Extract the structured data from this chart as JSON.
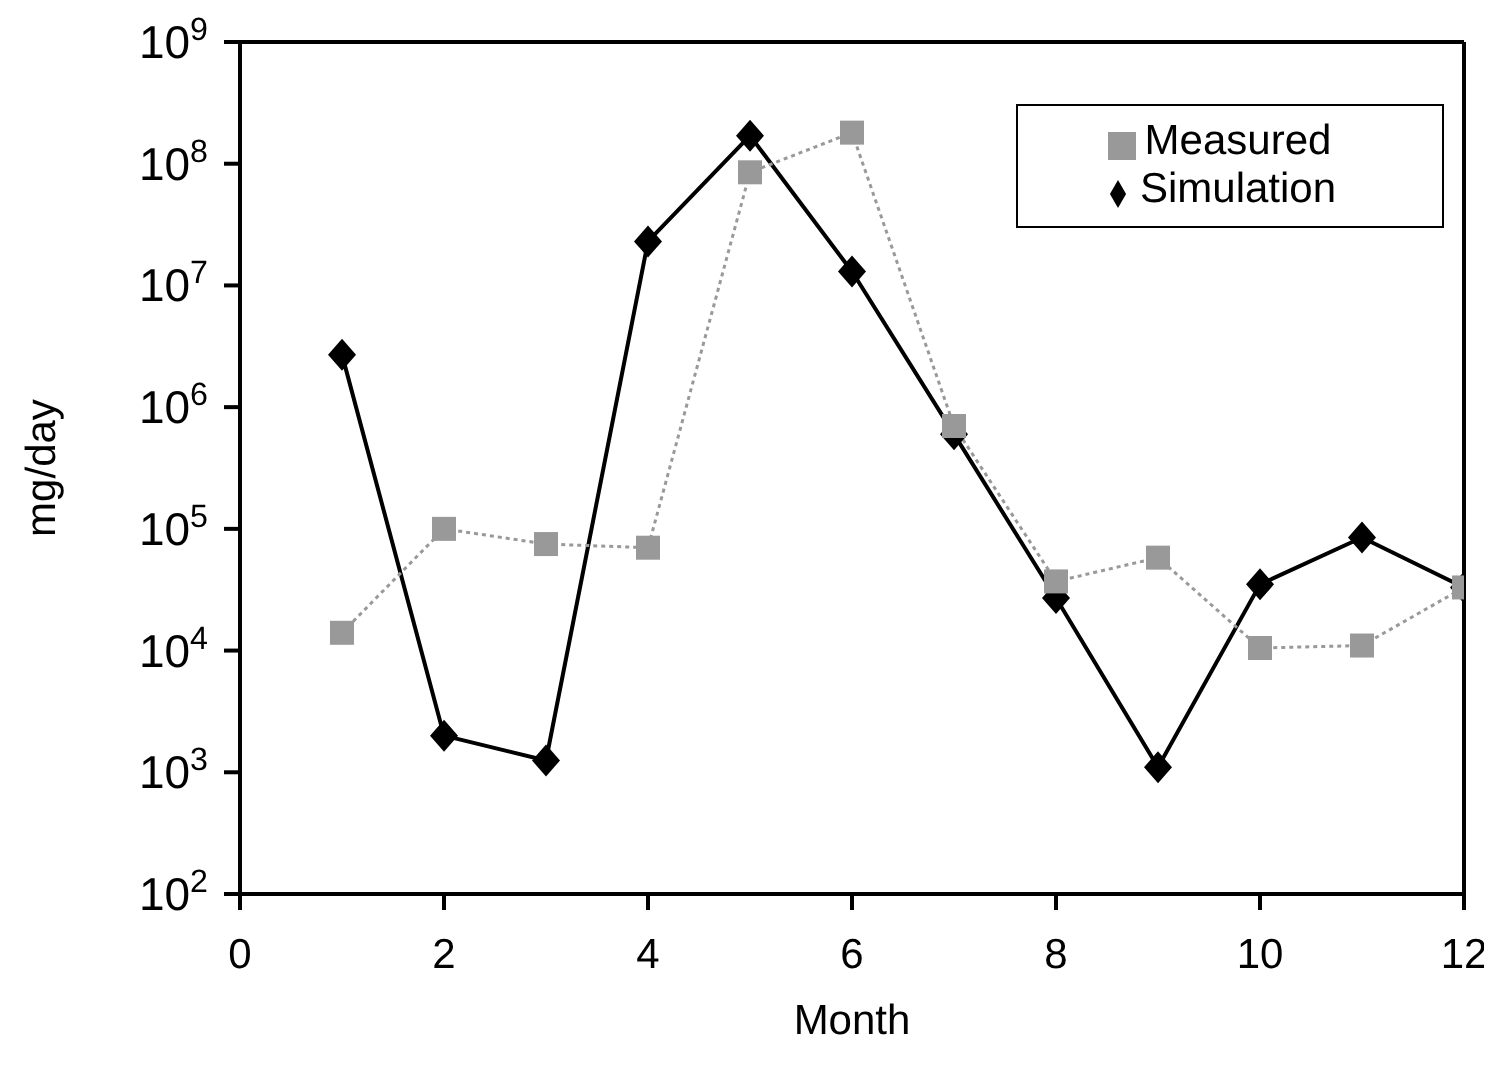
{
  "chart_data": {
    "type": "line",
    "xlabel": "Month",
    "ylabel": "mg/day",
    "log": "y",
    "x": [
      1,
      2,
      3,
      4,
      5,
      6,
      7,
      8,
      9,
      10,
      11,
      12
    ],
    "xlim": [
      0,
      12
    ],
    "xticks": [
      0,
      2,
      4,
      6,
      8,
      10,
      12
    ],
    "ylim": [
      100,
      1000000000
    ],
    "yticks": [
      {
        "value": 100,
        "label": "10$^{2}$"
      },
      {
        "value": 1000,
        "label": "10$^{3}$"
      },
      {
        "value": 10000,
        "label": "10$^{4}$"
      },
      {
        "value": 100000,
        "label": "10$^{5}$"
      },
      {
        "value": 1000000,
        "label": "10$^{6}$"
      },
      {
        "value": 10000000,
        "label": "10$^{7}$"
      },
      {
        "value": 100000000,
        "label": "10$^{8}$"
      },
      {
        "value": 1000000000,
        "label": "10$^{9}$"
      }
    ],
    "grid": false,
    "legend": "top right",
    "series": [
      {
        "name": "Measured",
        "color": "#999999",
        "marker": "square",
        "line_style": "dotted",
        "values": [
          14000,
          100000,
          75000,
          70000,
          85000000,
          180000000,
          700000,
          37000,
          58000,
          10500,
          11000,
          33000
        ]
      },
      {
        "name": "Simulation",
        "color": "#000000",
        "marker": "diamond",
        "line_style": "solid",
        "values": [
          2700000,
          2000,
          1250,
          23000000,
          170000000,
          13000000,
          600000,
          27000,
          1100,
          35000,
          85000,
          33000
        ]
      }
    ]
  }
}
